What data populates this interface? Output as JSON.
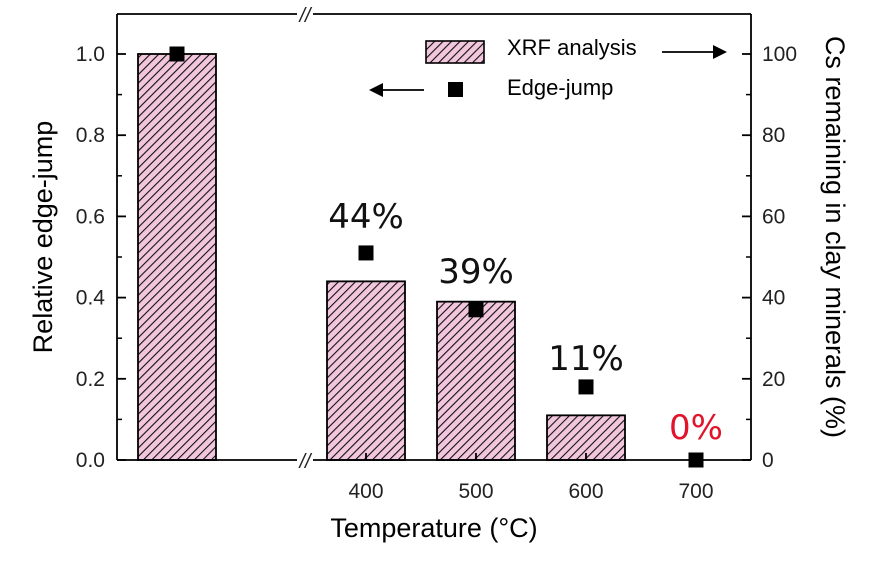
{
  "chart_data": {
    "type": "bar",
    "categories": [
      "",
      "400",
      "500",
      "600",
      "700"
    ],
    "xlabel": "Temperature (°C)",
    "y_left": {
      "label": "Relative edge-jump",
      "range": [
        0,
        1.0
      ],
      "ticks": [
        "0.0",
        "0.2",
        "0.4",
        "0.6",
        "0.8",
        "1.0"
      ]
    },
    "y_right": {
      "label": "Cs remaining in clay minerals (%)",
      "range": [
        0,
        100
      ],
      "ticks": [
        "0",
        "20",
        "40",
        "60",
        "80",
        "100"
      ]
    },
    "series": [
      {
        "name": "XRF analysis",
        "kind": "bar",
        "axis": "right",
        "values": [
          100,
          44,
          39,
          11,
          0
        ]
      },
      {
        "name": "Edge-jump",
        "kind": "scatter",
        "axis": "left",
        "values": [
          1.0,
          0.51,
          0.37,
          0.18,
          0.0
        ]
      }
    ],
    "data_labels": [
      {
        "category": "400",
        "text": "44%",
        "color": "#111111"
      },
      {
        "category": "500",
        "text": "39%",
        "color": "#111111"
      },
      {
        "category": "600",
        "text": "11%",
        "color": "#111111"
      },
      {
        "category": "700",
        "text": "0%",
        "color": "#e0142b"
      }
    ],
    "axis_break": "//",
    "bar_fill": "#f2c6dd",
    "bar_hatch": "#111111",
    "marker_color": "#000000",
    "legend": "top-right"
  }
}
